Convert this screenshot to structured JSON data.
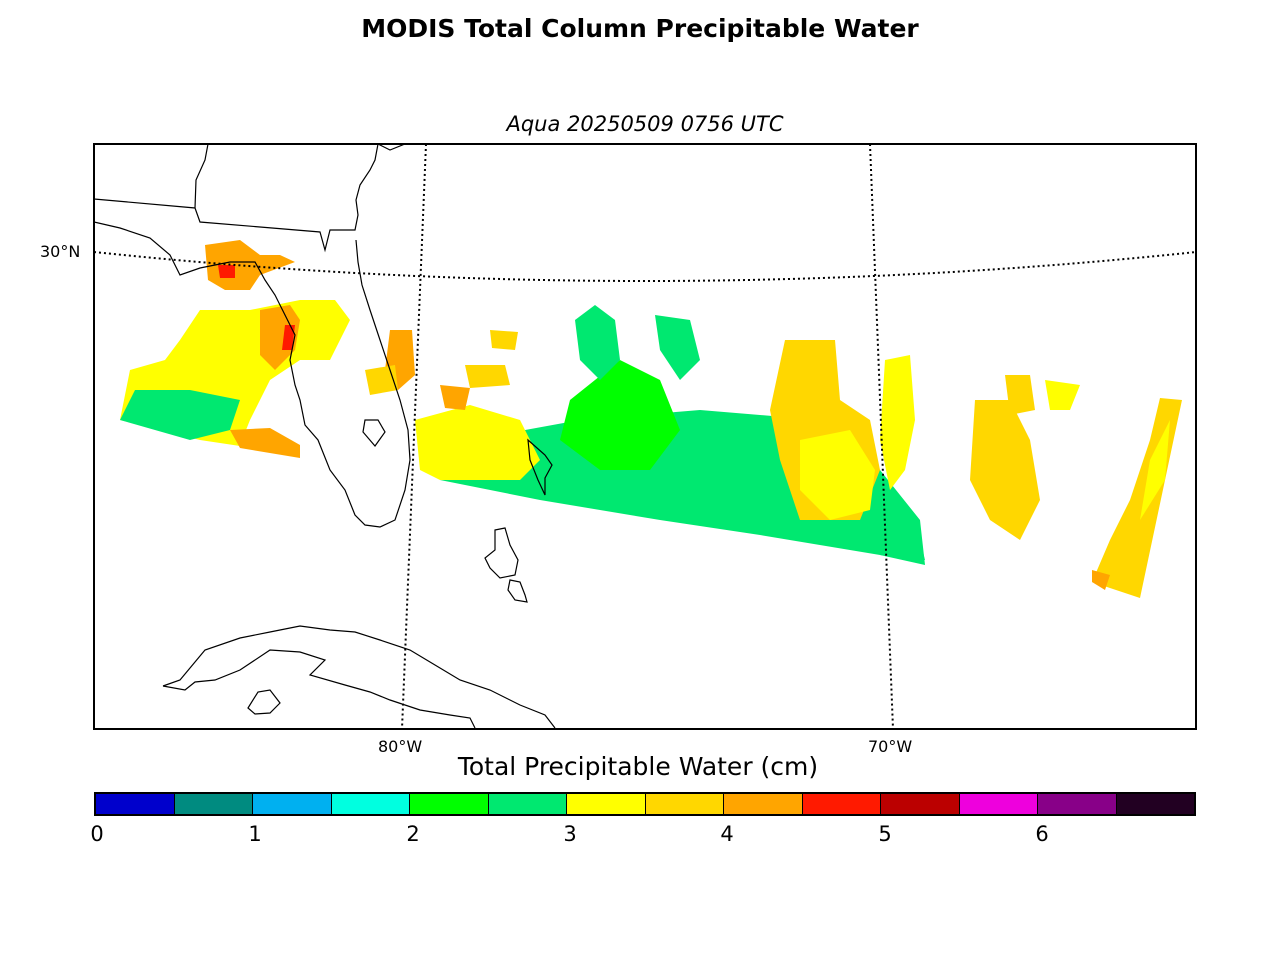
{
  "title": "MODIS Total Column Precipitable Water",
  "subtitle": "Aqua 20250509 0756 UTC",
  "map": {
    "lat_labels": [
      "30°N"
    ],
    "lon_labels": [
      "80°W",
      "70°W"
    ]
  },
  "colorbar": {
    "title": "Total Precipitable Water (cm)",
    "ticks": [
      "0",
      "1",
      "2",
      "3",
      "4",
      "5",
      "6"
    ],
    "colors": [
      "#0000cc",
      "#008b80",
      "#00b0f0",
      "#00ffe0",
      "#00ff00",
      "#00e870",
      "#ffff00",
      "#ffd700",
      "#ffa500",
      "#ff1a00",
      "#bb0000",
      "#ee00dd",
      "#880088",
      "#220022"
    ]
  }
}
